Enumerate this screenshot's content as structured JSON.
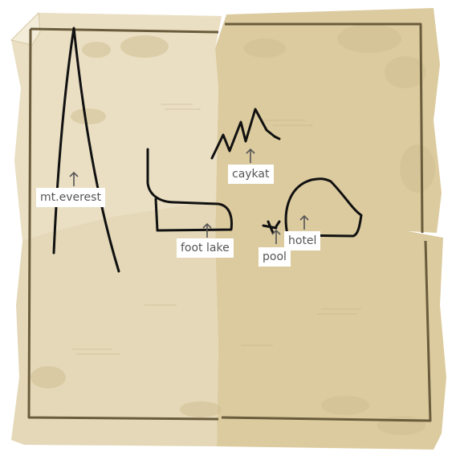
{
  "colors": {
    "paper_light": "#e5d9bb",
    "paper_dark": "#dac9a0",
    "stain": "#cdbb8e",
    "border": "#6a5c3c",
    "ink": "#111111",
    "label_bg": "#ffffff",
    "label_text": "#555555"
  },
  "labels": [
    {
      "id": "mt-everest",
      "text": "mt.everest"
    },
    {
      "id": "caykat",
      "text": "caykat"
    },
    {
      "id": "foot-lake",
      "text": "foot lake"
    },
    {
      "id": "pool",
      "text": "pool"
    },
    {
      "id": "hotel",
      "text": "hotel"
    }
  ]
}
